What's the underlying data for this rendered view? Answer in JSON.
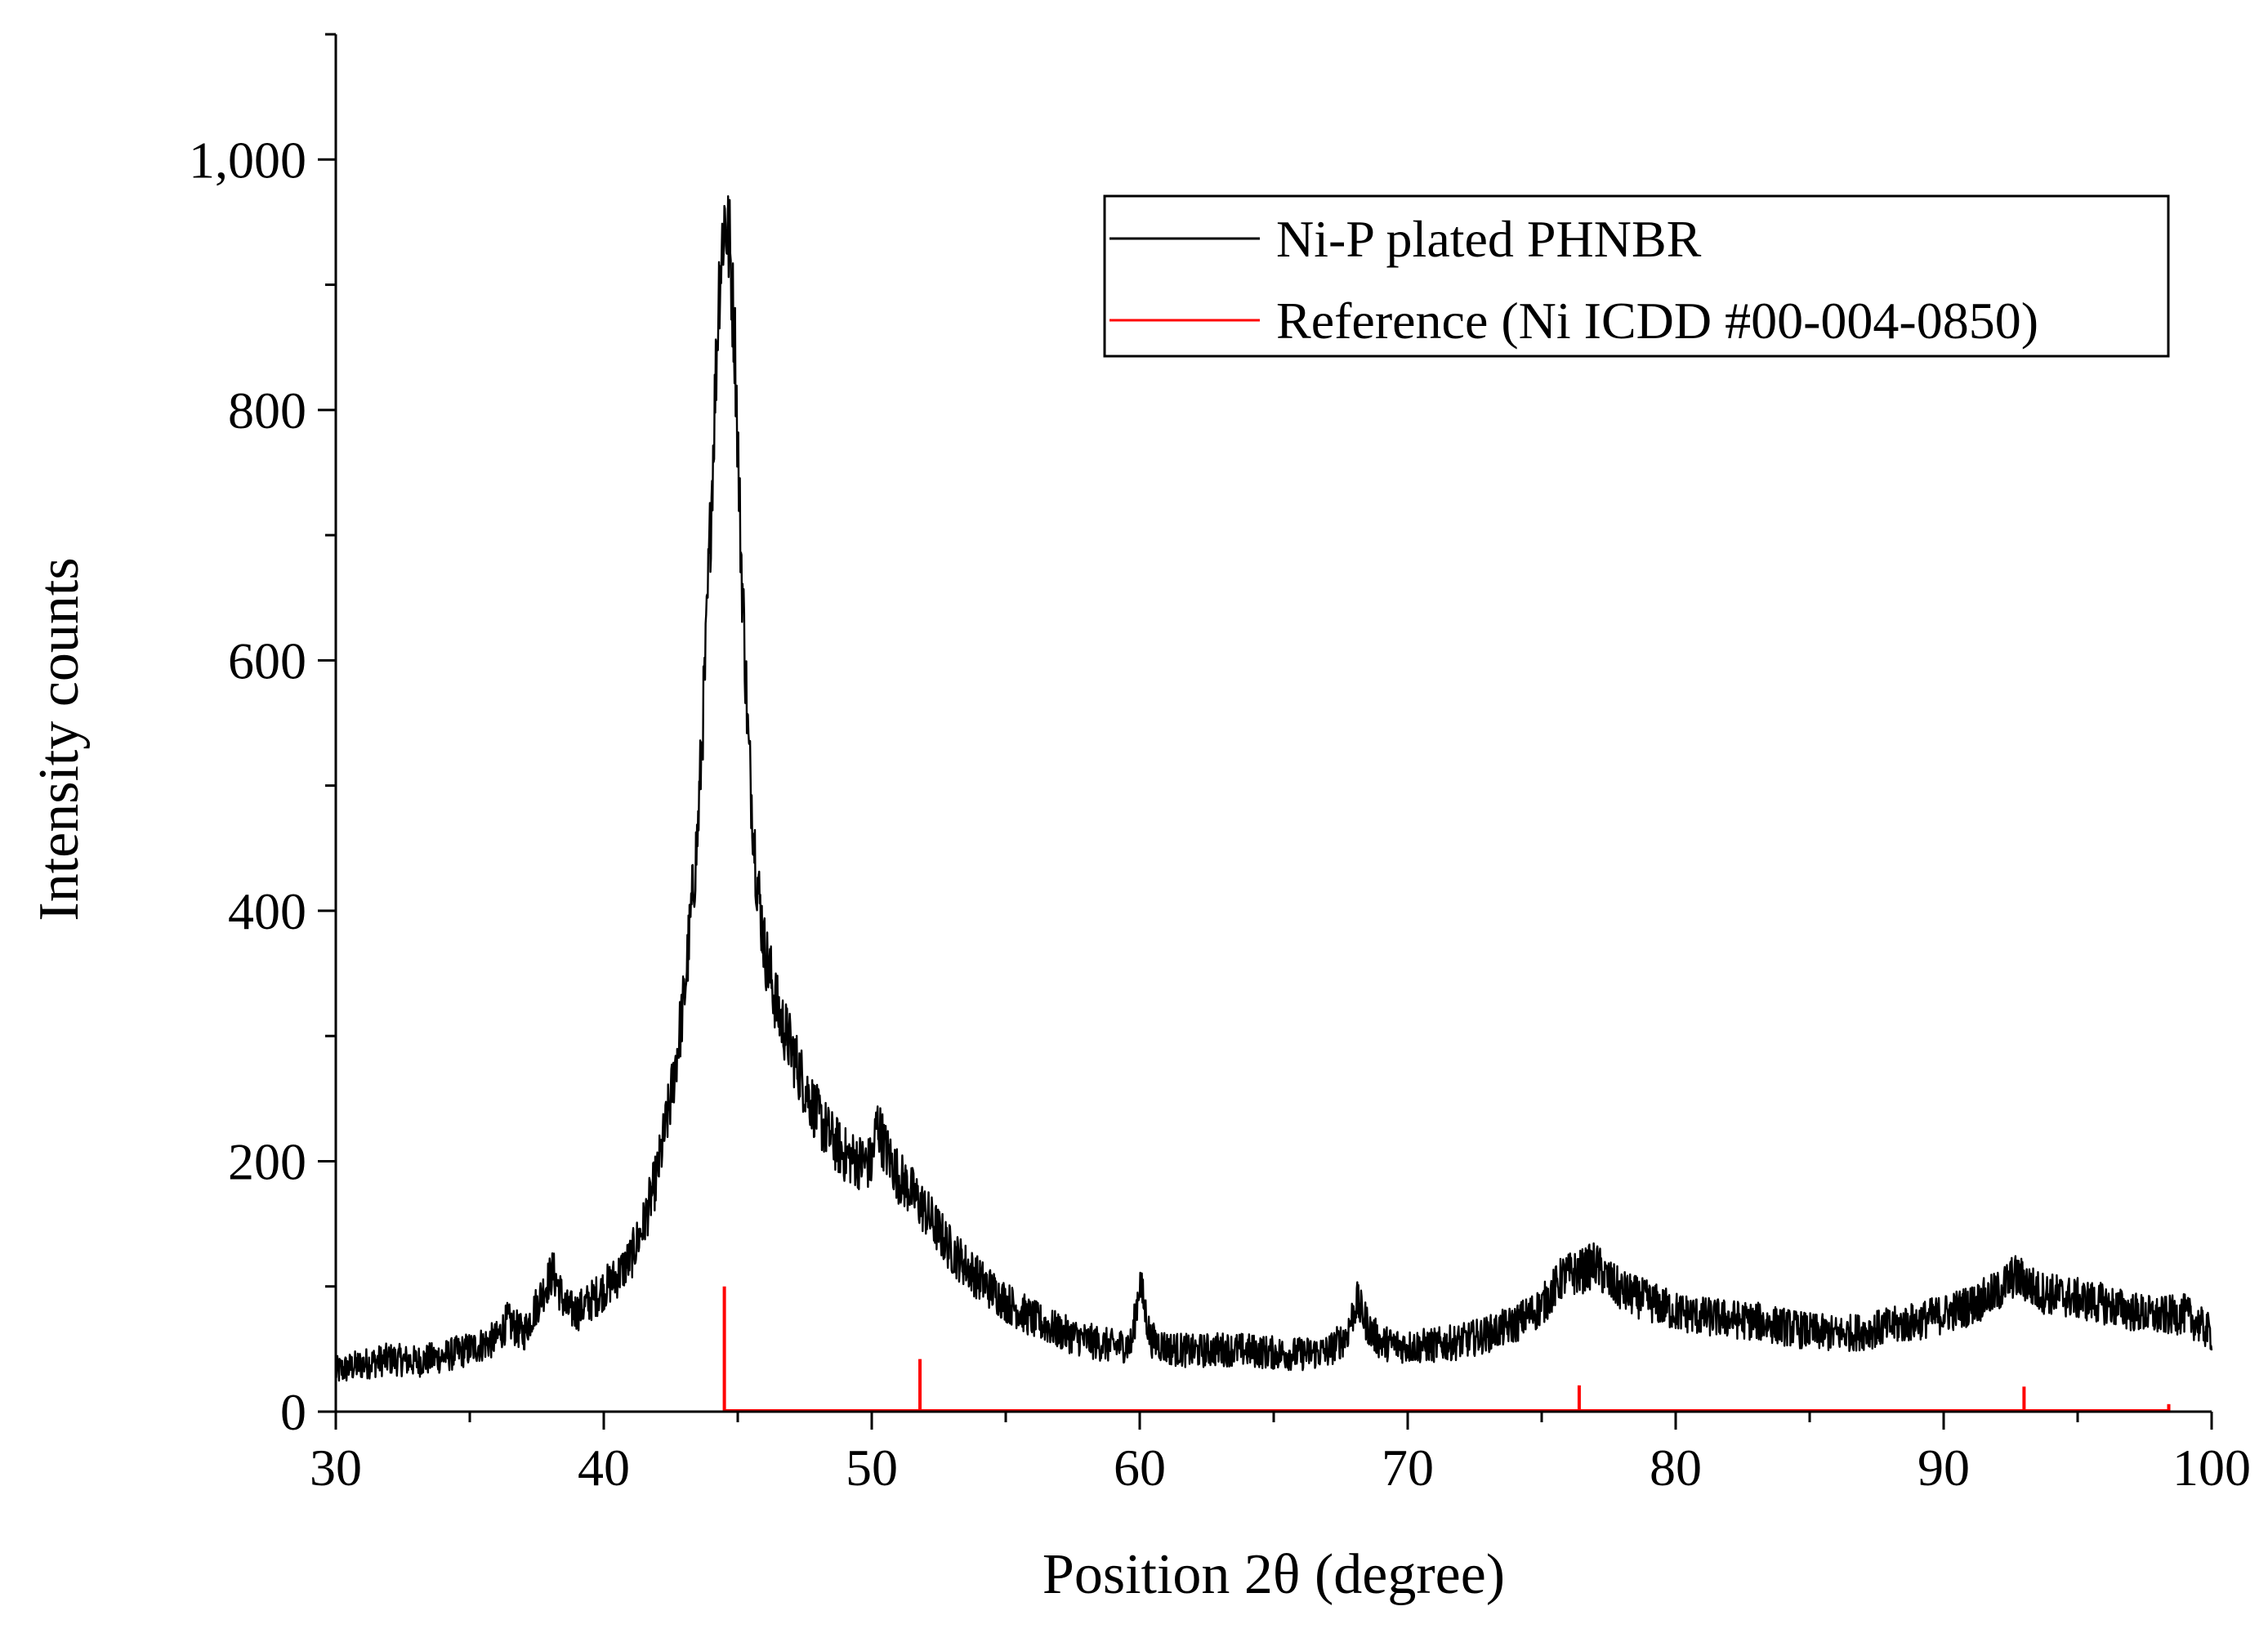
{
  "chart_data": {
    "type": "line",
    "title": "",
    "xlabel": "Position 2θ (degree)",
    "ylabel": "Intensity counts",
    "xlim": [
      30,
      100
    ],
    "ylim": [
      0,
      1100
    ],
    "grid": false,
    "xticks": [
      30,
      40,
      50,
      60,
      70,
      80,
      90,
      100
    ],
    "xtick_labels": [
      "30",
      "40",
      "50",
      "60",
      "70",
      "80",
      "90",
      "100"
    ],
    "yticks": [
      0,
      200,
      400,
      600,
      800,
      1000
    ],
    "ytick_labels": [
      "0",
      "200",
      "400",
      "600",
      "800",
      "1,000"
    ],
    "legend": {
      "placement": "top-right",
      "entries": [
        {
          "label": "Ni-P plated PHNBR",
          "color": "#000000"
        },
        {
          "label": "Reference (Ni ICDD #00-004-0850)",
          "color": "#ff0000"
        }
      ]
    },
    "series": [
      {
        "name": "Ni-P plated PHNBR",
        "kind": "line",
        "color": "#000000",
        "x": [
          30,
          31,
          32,
          33,
          34,
          35,
          36,
          36.4,
          37,
          37.6,
          38.1,
          38.6,
          39,
          39.5,
          40,
          40.5,
          41,
          41.5,
          42,
          42.5,
          43,
          43.5,
          43.8,
          44.1,
          44.3,
          44.5,
          44.7,
          44.9,
          45.1,
          45.4,
          45.7,
          46,
          46.5,
          47,
          47.5,
          48,
          48.5,
          49,
          49.5,
          50,
          50.2,
          50.5,
          51,
          51.5,
          52,
          53,
          54,
          55,
          56,
          57,
          58,
          59,
          59.7,
          60,
          60.4,
          61,
          62,
          63,
          64,
          65,
          66,
          67,
          67.7,
          68.1,
          68.6,
          69,
          70,
          71,
          72,
          73,
          74,
          75,
          75.8,
          76.5,
          77,
          77.5,
          78,
          79,
          80,
          81,
          82,
          83,
          84,
          85,
          86,
          87,
          88,
          89,
          90,
          91,
          92,
          92.6,
          93,
          93.5,
          94,
          95,
          96,
          97,
          98,
          99,
          100
        ],
        "y": [
          32,
          38,
          42,
          40,
          44,
          50,
          58,
          72,
          62,
          90,
          112,
          82,
          80,
          88,
          98,
          108,
          122,
          150,
          190,
          250,
          330,
          460,
          600,
          780,
          900,
          955,
          930,
          850,
          700,
          530,
          430,
          370,
          320,
          290,
          260,
          235,
          218,
          205,
          200,
          198,
          232,
          210,
          188,
          175,
          160,
          128,
          106,
          88,
          74,
          64,
          57,
          52,
          54,
          104,
          58,
          51,
          48,
          50,
          49,
          47,
          46,
          48,
          60,
          88,
          65,
          55,
          52,
          53,
          56,
          62,
          70,
          84,
          108,
          112,
          118,
          104,
          96,
          88,
          80,
          76,
          74,
          72,
          68,
          64,
          62,
          64,
          68,
          72,
          78,
          85,
          95,
          108,
          105,
          96,
          94,
          90,
          86,
          80,
          76,
          78,
          62
        ]
      },
      {
        "name": "Reference (Ni ICDD #00-004-0850)",
        "kind": "stick",
        "color": "#ff0000",
        "x": [
          44.5,
          51.8,
          76.4,
          93.0,
          98.4
        ],
        "y": [
          100,
          42,
          21,
          20,
          6
        ]
      }
    ]
  }
}
